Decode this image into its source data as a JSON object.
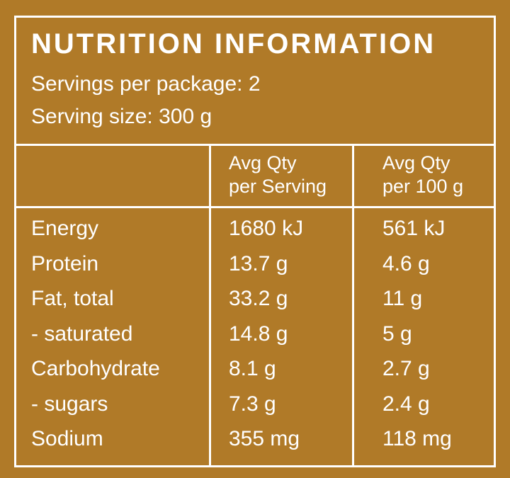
{
  "header": {
    "title": "NUTRITION INFORMATION",
    "servings": "Servings per package: 2",
    "serving_size": "Serving size: 300 g"
  },
  "table": {
    "columns": [
      [
        "Avg Qty",
        "per Serving"
      ],
      [
        "Avg Qty",
        "per 100 g"
      ]
    ],
    "rows": [
      [
        "Energy",
        "1680 kJ",
        "561 kJ"
      ],
      [
        "Protein",
        "13.7 g",
        "4.6 g"
      ],
      [
        "Fat, total",
        "33.2 g",
        "11 g"
      ],
      [
        "- saturated",
        "14.8 g",
        "5 g"
      ],
      [
        "Carbohydrate",
        "8.1 g",
        "2.7 g"
      ],
      [
        "- sugars",
        "7.3 g",
        "2.4 g"
      ],
      [
        "Sodium",
        "355 mg",
        "118 mg"
      ]
    ]
  }
}
